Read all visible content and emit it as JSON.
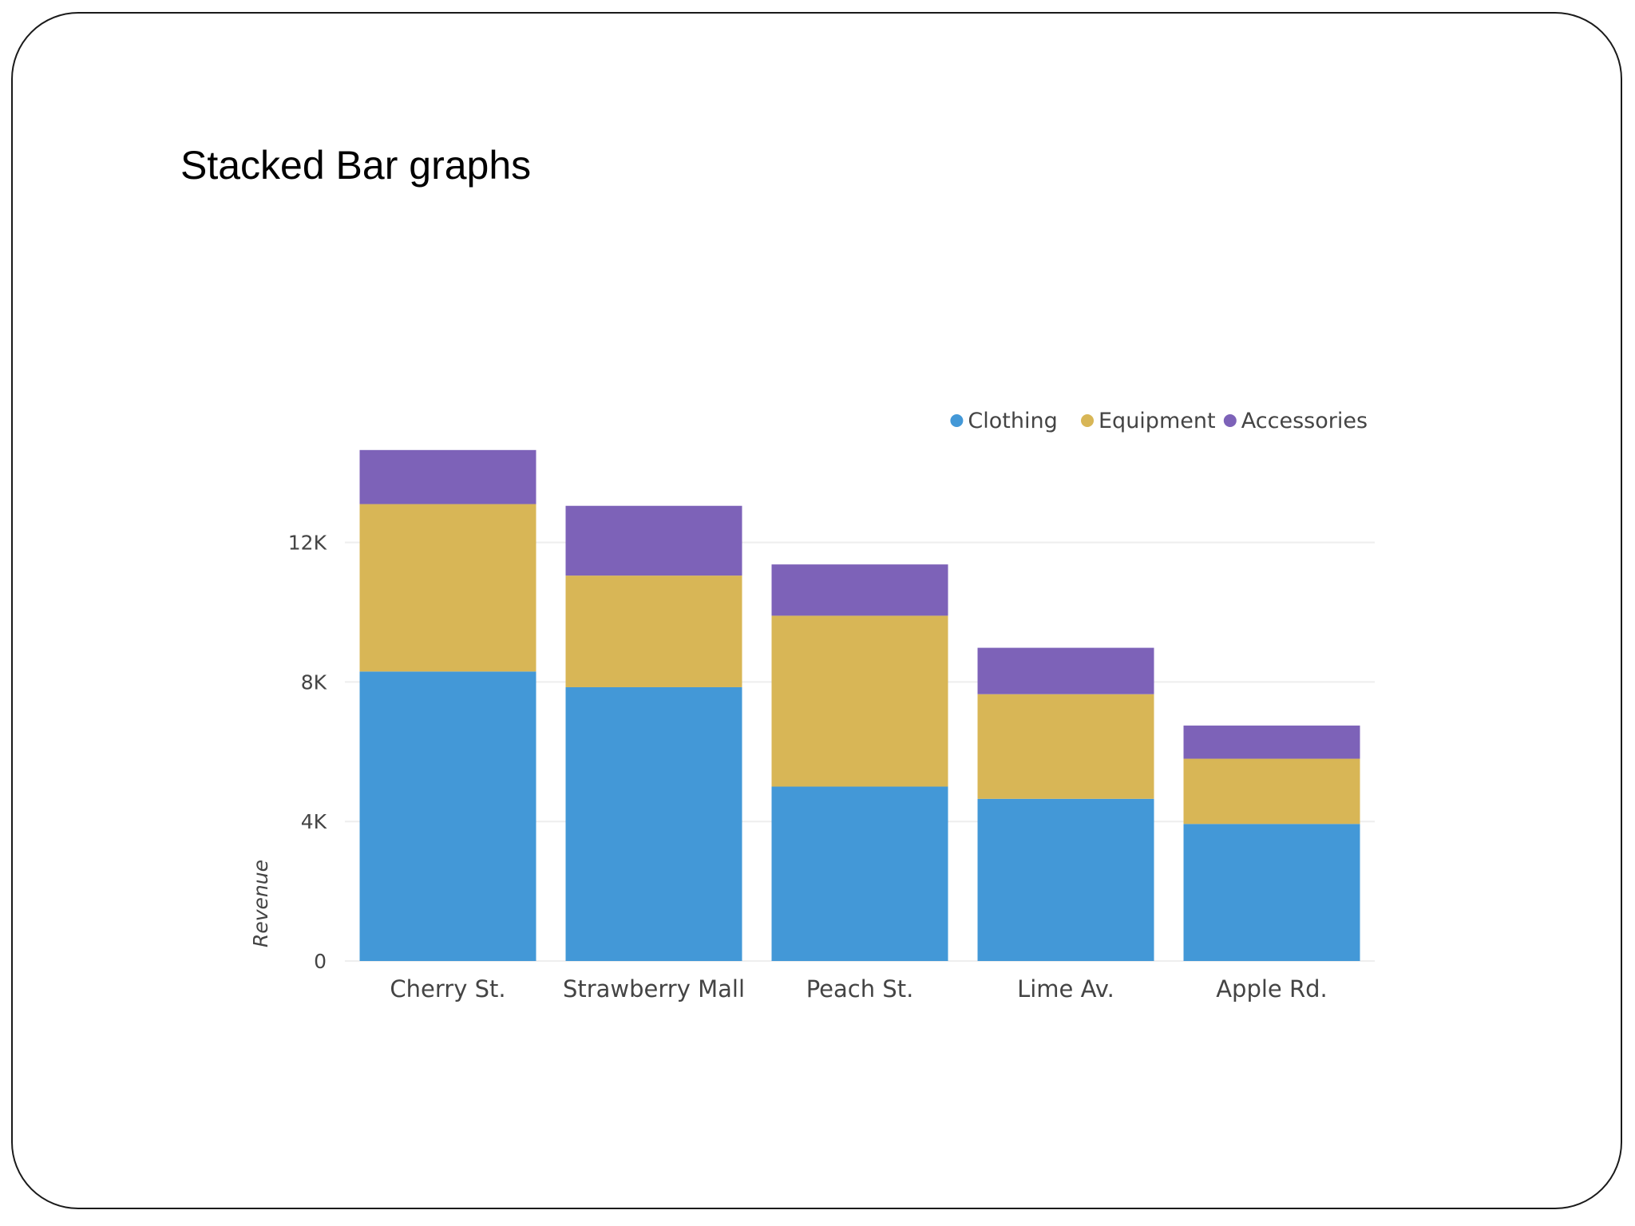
{
  "slide": {
    "title": "Stacked Bar graphs"
  },
  "chart_data": {
    "type": "bar",
    "stacked": true,
    "title": "",
    "xlabel": "",
    "ylabel": "Revenue",
    "ylim": [
      0,
      14600
    ],
    "yticks": [
      0,
      4000,
      8000,
      12000
    ],
    "ytick_labels": [
      "0",
      "4K",
      "8K",
      "12K"
    ],
    "grid": true,
    "legend_position": "top-right",
    "categories": [
      "Cherry St.",
      "Strawberry Mall",
      "Peach St.",
      "Lime Av.",
      "Apple Rd."
    ],
    "series": [
      {
        "name": "Clothing",
        "color": "#4398d7",
        "values": [
          8300,
          7850,
          5000,
          4650,
          3930
        ]
      },
      {
        "name": "Equipment",
        "color": "#d8b656",
        "values": [
          4800,
          3200,
          4900,
          3000,
          1870
        ]
      },
      {
        "name": "Accessories",
        "color": "#7d62b8",
        "values": [
          1550,
          2000,
          1470,
          1330,
          950
        ]
      }
    ]
  }
}
